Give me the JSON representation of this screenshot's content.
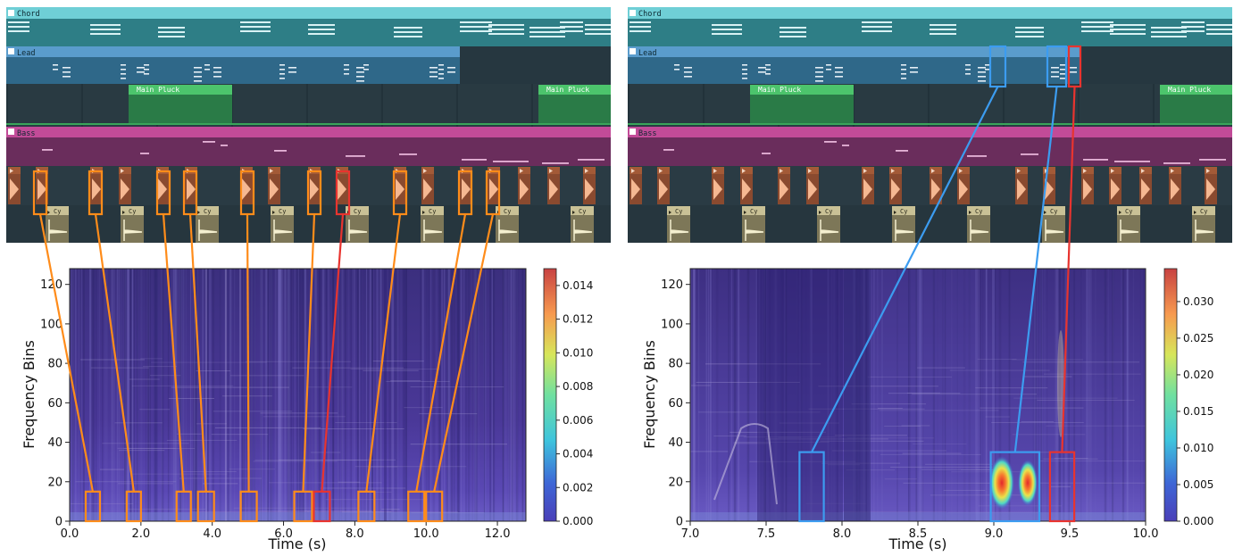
{
  "tracks": {
    "chord": "Chord",
    "lead": "Lead",
    "pluck": "Main Pluck",
    "bass": "Bass",
    "cy": "Cy"
  },
  "colors": {
    "chord": "#5fc3c9",
    "lead": "#4a8ec0",
    "pluck": "#3aa55a",
    "bass": "#b8438f",
    "kick": "#e5a07a",
    "cy": "#c9c196",
    "orange_marker": "#ff8c1a",
    "red_marker": "#e8342f",
    "blue_marker": "#3c9cf0"
  },
  "left_chart": {
    "type": "heatmap",
    "xlabel": "Time (s)",
    "ylabel": "Frequency Bins",
    "xlim": [
      0,
      12.8
    ],
    "ylim": [
      0,
      128
    ],
    "xticks": [
      "0.0",
      "2.0",
      "4.0",
      "6.0",
      "8.0",
      "10.0",
      "12.0"
    ],
    "yticks": [
      "0",
      "20",
      "40",
      "60",
      "80",
      "100",
      "120"
    ],
    "colorbar_ticks": [
      "0.000",
      "0.002",
      "0.004",
      "0.006",
      "0.008",
      "0.010",
      "0.012",
      "0.014"
    ],
    "colorbar_max": 0.015
  },
  "right_chart": {
    "type": "heatmap",
    "xlabel": "Time (s)",
    "ylabel": "Frequency Bins",
    "xlim": [
      7.0,
      10.0
    ],
    "ylim": [
      0,
      128
    ],
    "xticks": [
      "7.0",
      "7.5",
      "8.0",
      "8.5",
      "9.0",
      "9.5",
      "10.0"
    ],
    "yticks": [
      "0",
      "20",
      "40",
      "60",
      "80",
      "100",
      "120"
    ],
    "colorbar_ticks": [
      "0.000",
      "0.005",
      "0.010",
      "0.015",
      "0.020",
      "0.025",
      "0.030"
    ],
    "colorbar_max": 0.0345
  },
  "chart_data": [
    {
      "type": "heatmap",
      "xlabel": "Time (s)",
      "ylabel": "Frequency Bins",
      "xlim": [
        0,
        12.8
      ],
      "ylim": [
        0,
        128
      ],
      "highlighted_regions": [
        {
          "t0": 0.45,
          "t1": 0.85,
          "f0": 0,
          "f1": 15,
          "color": "orange"
        },
        {
          "t0": 1.6,
          "t1": 2.0,
          "f0": 0,
          "f1": 15,
          "color": "orange"
        },
        {
          "t0": 3.0,
          "t1": 3.4,
          "f0": 0,
          "f1": 15,
          "color": "orange"
        },
        {
          "t0": 3.6,
          "t1": 4.05,
          "f0": 0,
          "f1": 15,
          "color": "orange"
        },
        {
          "t0": 4.8,
          "t1": 5.25,
          "f0": 0,
          "f1": 15,
          "color": "orange"
        },
        {
          "t0": 6.3,
          "t1": 6.8,
          "f0": 0,
          "f1": 15,
          "color": "orange"
        },
        {
          "t0": 6.85,
          "t1": 7.3,
          "f0": 0,
          "f1": 15,
          "color": "red"
        },
        {
          "t0": 8.1,
          "t1": 8.55,
          "f0": 0,
          "f1": 15,
          "color": "orange"
        },
        {
          "t0": 9.5,
          "t1": 9.95,
          "f0": 0,
          "f1": 15,
          "color": "orange"
        },
        {
          "t0": 10.0,
          "t1": 10.45,
          "f0": 0,
          "f1": 15,
          "color": "orange"
        }
      ]
    },
    {
      "type": "heatmap",
      "xlabel": "Time (s)",
      "ylabel": "Frequency Bins",
      "xlim": [
        7.0,
        10.0
      ],
      "ylim": [
        0,
        128
      ],
      "highlighted_regions": [
        {
          "t0": 7.72,
          "t1": 7.88,
          "f0": 0,
          "f1": 35,
          "color": "blue"
        },
        {
          "t0": 8.98,
          "t1": 9.3,
          "f0": 0,
          "f1": 35,
          "color": "blue"
        },
        {
          "t0": 9.37,
          "t1": 9.53,
          "f0": 0,
          "f1": 35,
          "color": "red"
        }
      ]
    }
  ]
}
